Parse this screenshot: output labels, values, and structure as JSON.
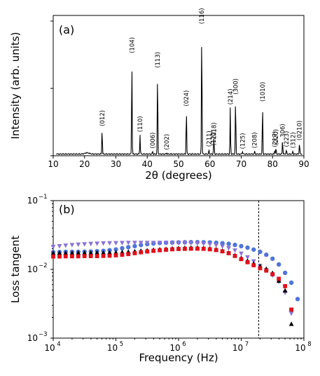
{
  "chart_data": [
    {
      "type": "line",
      "panel_label": "(a)",
      "xlabel": "2θ (degrees)",
      "ylabel": "Intensity (arb. units)",
      "xlim": [
        10,
        90
      ],
      "ylim": [
        0,
        100
      ],
      "xticks": [
        "10",
        "20",
        "30",
        "40",
        "50",
        "60",
        "70",
        "80",
        "90"
      ],
      "y_tick_labels_shown": false,
      "line_color": "#000000",
      "background_level": 1.2,
      "peaks": [
        {
          "label": "(012)",
          "x": 25.6,
          "y": 18
        },
        {
          "label": "(104)",
          "x": 35.1,
          "y": 70
        },
        {
          "label": "(110)",
          "x": 37.7,
          "y": 14
        },
        {
          "label": "(006)",
          "x": 41.7,
          "y": 2
        },
        {
          "label": "(113)",
          "x": 43.3,
          "y": 59
        },
        {
          "label": "(202)",
          "x": 46.2,
          "y": 1
        },
        {
          "label": "(024)",
          "x": 52.5,
          "y": 32
        },
        {
          "label": "(116)",
          "x": 57.4,
          "y": 91
        },
        {
          "label": "(211)",
          "x": 59.7,
          "y": 3
        },
        {
          "label": "(122)",
          "x": 61.2,
          "y": 4
        },
        {
          "label": "(018)",
          "x": 61.3,
          "y": 9
        },
        {
          "label": "(214)",
          "x": 66.5,
          "y": 33
        },
        {
          "label": "(300)",
          "x": 68.2,
          "y": 40
        },
        {
          "label": "(125)",
          "x": 70.4,
          "y": 2
        },
        {
          "label": "(208)",
          "x": 74.3,
          "y": 2
        },
        {
          "label": "(1010)",
          "x": 76.8,
          "y": 35
        },
        {
          "label": "(217)",
          "x": 80.7,
          "y": 3
        },
        {
          "label": "(220)",
          "x": 81.1,
          "y": 4
        },
        {
          "label": "306)",
          "x": 83.2,
          "y": 10
        },
        {
          "label": "(223)",
          "x": 84.4,
          "y": 3
        },
        {
          "label": "(312)",
          "x": 86.5,
          "y": 2
        },
        {
          "label": "(0210)",
          "x": 88.6,
          "y": 8
        }
      ]
    },
    {
      "type": "scatter",
      "panel_label": "(b)",
      "xlabel": "Frequency (Hz)",
      "ylabel": "Loss tangent",
      "xscale": "log",
      "yscale": "log",
      "xlim": [
        10000,
        100000000
      ],
      "ylim": [
        0.001,
        0.1
      ],
      "xticks": [
        {
          "base": "10",
          "exp": "4"
        },
        {
          "base": "10",
          "exp": "5"
        },
        {
          "base": "10",
          "exp": "6"
        },
        {
          "base": "10",
          "exp": "7"
        },
        {
          "base": "10",
          "exp": "8"
        }
      ],
      "yticks": [
        {
          "base": "10",
          "exp": "−3"
        },
        {
          "base": "10",
          "exp": "−2"
        },
        {
          "base": "10",
          "exp": "−1"
        }
      ],
      "vline_x": 19000000,
      "series": [
        {
          "marker": "circle",
          "color": "#4f74d9",
          "x": [
            10000,
            12600,
            15800,
            20000,
            25100,
            31600,
            39800,
            50100,
            63100,
            79400,
            100000,
            126000,
            158000,
            200000,
            251000,
            316000,
            398000,
            501000,
            631000,
            794000,
            1000000,
            1260000,
            1580000,
            2000000,
            2510000,
            3160000,
            3980000,
            5010000,
            6310000,
            7940000,
            10000000,
            12600000,
            15800000,
            20000000,
            25100000,
            31600000,
            39800000,
            50100000,
            63100000,
            79400000
          ],
          "y": [
            0.0178,
            0.0179,
            0.018,
            0.018,
            0.018,
            0.0181,
            0.0182,
            0.0184,
            0.0186,
            0.019,
            0.0195,
            0.0203,
            0.021,
            0.0218,
            0.0226,
            0.0233,
            0.0238,
            0.0242,
            0.0244,
            0.0246,
            0.0247,
            0.0248,
            0.0249,
            0.0249,
            0.0248,
            0.0247,
            0.0244,
            0.024,
            0.0235,
            0.0227,
            0.0218,
            0.0207,
            0.0194,
            0.018,
            0.0163,
            0.0143,
            0.0118,
            0.0089,
            0.0064,
            0.0037
          ]
        },
        {
          "marker": "triangle-down",
          "color": "#8a73d8",
          "x": [
            10000,
            12600,
            15800,
            20000,
            25100,
            31600,
            39800,
            50100,
            63100,
            79400,
            100000,
            126000,
            158000,
            200000,
            251000,
            316000,
            398000,
            501000,
            631000,
            794000,
            1000000,
            1260000,
            1580000,
            2000000,
            2510000,
            3160000,
            3980000,
            5010000,
            6310000,
            7940000,
            10000000,
            12600000,
            15800000,
            20000000,
            25100000,
            31600000,
            39800000,
            50100000,
            63100000
          ],
          "y": [
            0.0214,
            0.0219,
            0.0224,
            0.0228,
            0.0231,
            0.0234,
            0.0237,
            0.0239,
            0.0241,
            0.0242,
            0.0243,
            0.0244,
            0.0245,
            0.0245,
            0.0245,
            0.0245,
            0.0245,
            0.0245,
            0.0245,
            0.0245,
            0.0245,
            0.0244,
            0.0243,
            0.0241,
            0.0238,
            0.0233,
            0.0226,
            0.0217,
            0.0205,
            0.019,
            0.0171,
            0.0151,
            0.0132,
            0.0113,
            0.0098,
            0.0082,
            0.0066,
            0.0046,
            0.0023
          ]
        },
        {
          "marker": "triangle-up",
          "color": "#000000",
          "x": [
            10000,
            12600,
            15800,
            20000,
            25100,
            31600,
            39800,
            50100,
            63100,
            79400,
            100000,
            126000,
            158000,
            200000,
            251000,
            316000,
            398000,
            501000,
            631000,
            794000,
            1000000,
            1260000,
            1580000,
            2000000,
            2510000,
            3160000,
            3980000,
            5010000,
            6310000,
            7940000,
            10000000,
            12600000,
            15800000,
            20000000,
            25100000,
            31600000,
            39800000,
            50100000,
            63100000
          ],
          "y": [
            0.0172,
            0.0172,
            0.0172,
            0.0172,
            0.0173,
            0.0173,
            0.0173,
            0.0174,
            0.0174,
            0.0175,
            0.0175,
            0.0177,
            0.0179,
            0.0182,
            0.0185,
            0.0188,
            0.0191,
            0.0194,
            0.0197,
            0.02,
            0.0202,
            0.0204,
            0.0205,
            0.0205,
            0.0203,
            0.02,
            0.0194,
            0.0185,
            0.0173,
            0.0159,
            0.0145,
            0.0132,
            0.0121,
            0.0111,
            0.0101,
            0.0088,
            0.0068,
            0.0049,
            0.0016
          ]
        },
        {
          "marker": "square",
          "color": "#e0101a",
          "x": [
            10000,
            12600,
            15800,
            20000,
            25100,
            31600,
            39800,
            50100,
            63100,
            79400,
            100000,
            126000,
            158000,
            200000,
            251000,
            316000,
            398000,
            501000,
            631000,
            794000,
            1000000,
            1260000,
            1580000,
            2000000,
            2510000,
            3160000,
            3980000,
            5010000,
            6310000,
            7940000,
            10000000,
            12600000,
            15800000,
            20000000,
            25100000,
            31600000,
            39800000,
            50100000,
            63100000
          ],
          "y": [
            0.0154,
            0.0154,
            0.0155,
            0.0155,
            0.0155,
            0.0156,
            0.0156,
            0.0156,
            0.0157,
            0.0158,
            0.016,
            0.0163,
            0.0167,
            0.0172,
            0.0177,
            0.0182,
            0.0186,
            0.019,
            0.0193,
            0.0196,
            0.0198,
            0.0199,
            0.02,
            0.02,
            0.0199,
            0.0196,
            0.0191,
            0.0183,
            0.0172,
            0.0157,
            0.0141,
            0.0127,
            0.0115,
            0.0104,
            0.0096,
            0.0085,
            0.0073,
            0.0057,
            0.0026
          ]
        }
      ]
    }
  ]
}
